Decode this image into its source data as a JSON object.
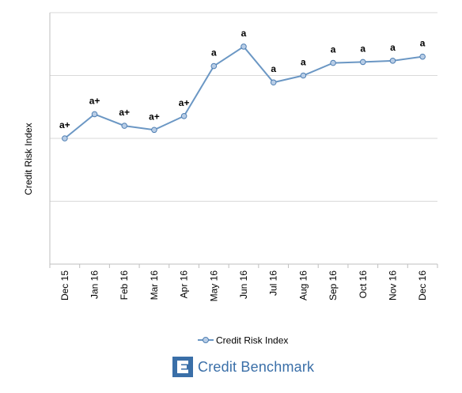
{
  "chart_data": {
    "type": "line",
    "ylabel": "Credit Risk Index",
    "categories": [
      "Dec 15",
      "Jan 16",
      "Feb 16",
      "Mar 16",
      "Apr 16",
      "May 16",
      "Jun 16",
      "Jul 16",
      "Aug 16",
      "Sep 16",
      "Oct 16",
      "Nov 16",
      "Dec 16"
    ],
    "series": [
      {
        "name": "Credit Risk Index",
        "values": [
          2.0,
          2.77,
          2.4,
          2.27,
          2.71,
          4.3,
          4.92,
          3.78,
          4.0,
          4.4,
          4.43,
          4.47,
          4.6
        ],
        "data_labels": [
          "a+",
          "a+",
          "a+",
          "a+",
          "a+",
          "a",
          "a",
          "a",
          "a",
          "a",
          "a",
          "a",
          "a"
        ]
      }
    ],
    "ylim": [
      -2,
      6
    ],
    "y_tick_labels_shown": false,
    "grid": "horizontal",
    "legend_position": "bottom",
    "colors": {
      "line": "#6b97c4",
      "marker_fill": "#b8cde6",
      "marker_edge": "#4f7fb3",
      "grid": "#d9d9d9",
      "axis": "#bfbfbf"
    }
  },
  "brand": {
    "name": "Credit Benchmark",
    "logo_icon": "credit-benchmark-logo-icon",
    "color": "#3a6fa8"
  }
}
